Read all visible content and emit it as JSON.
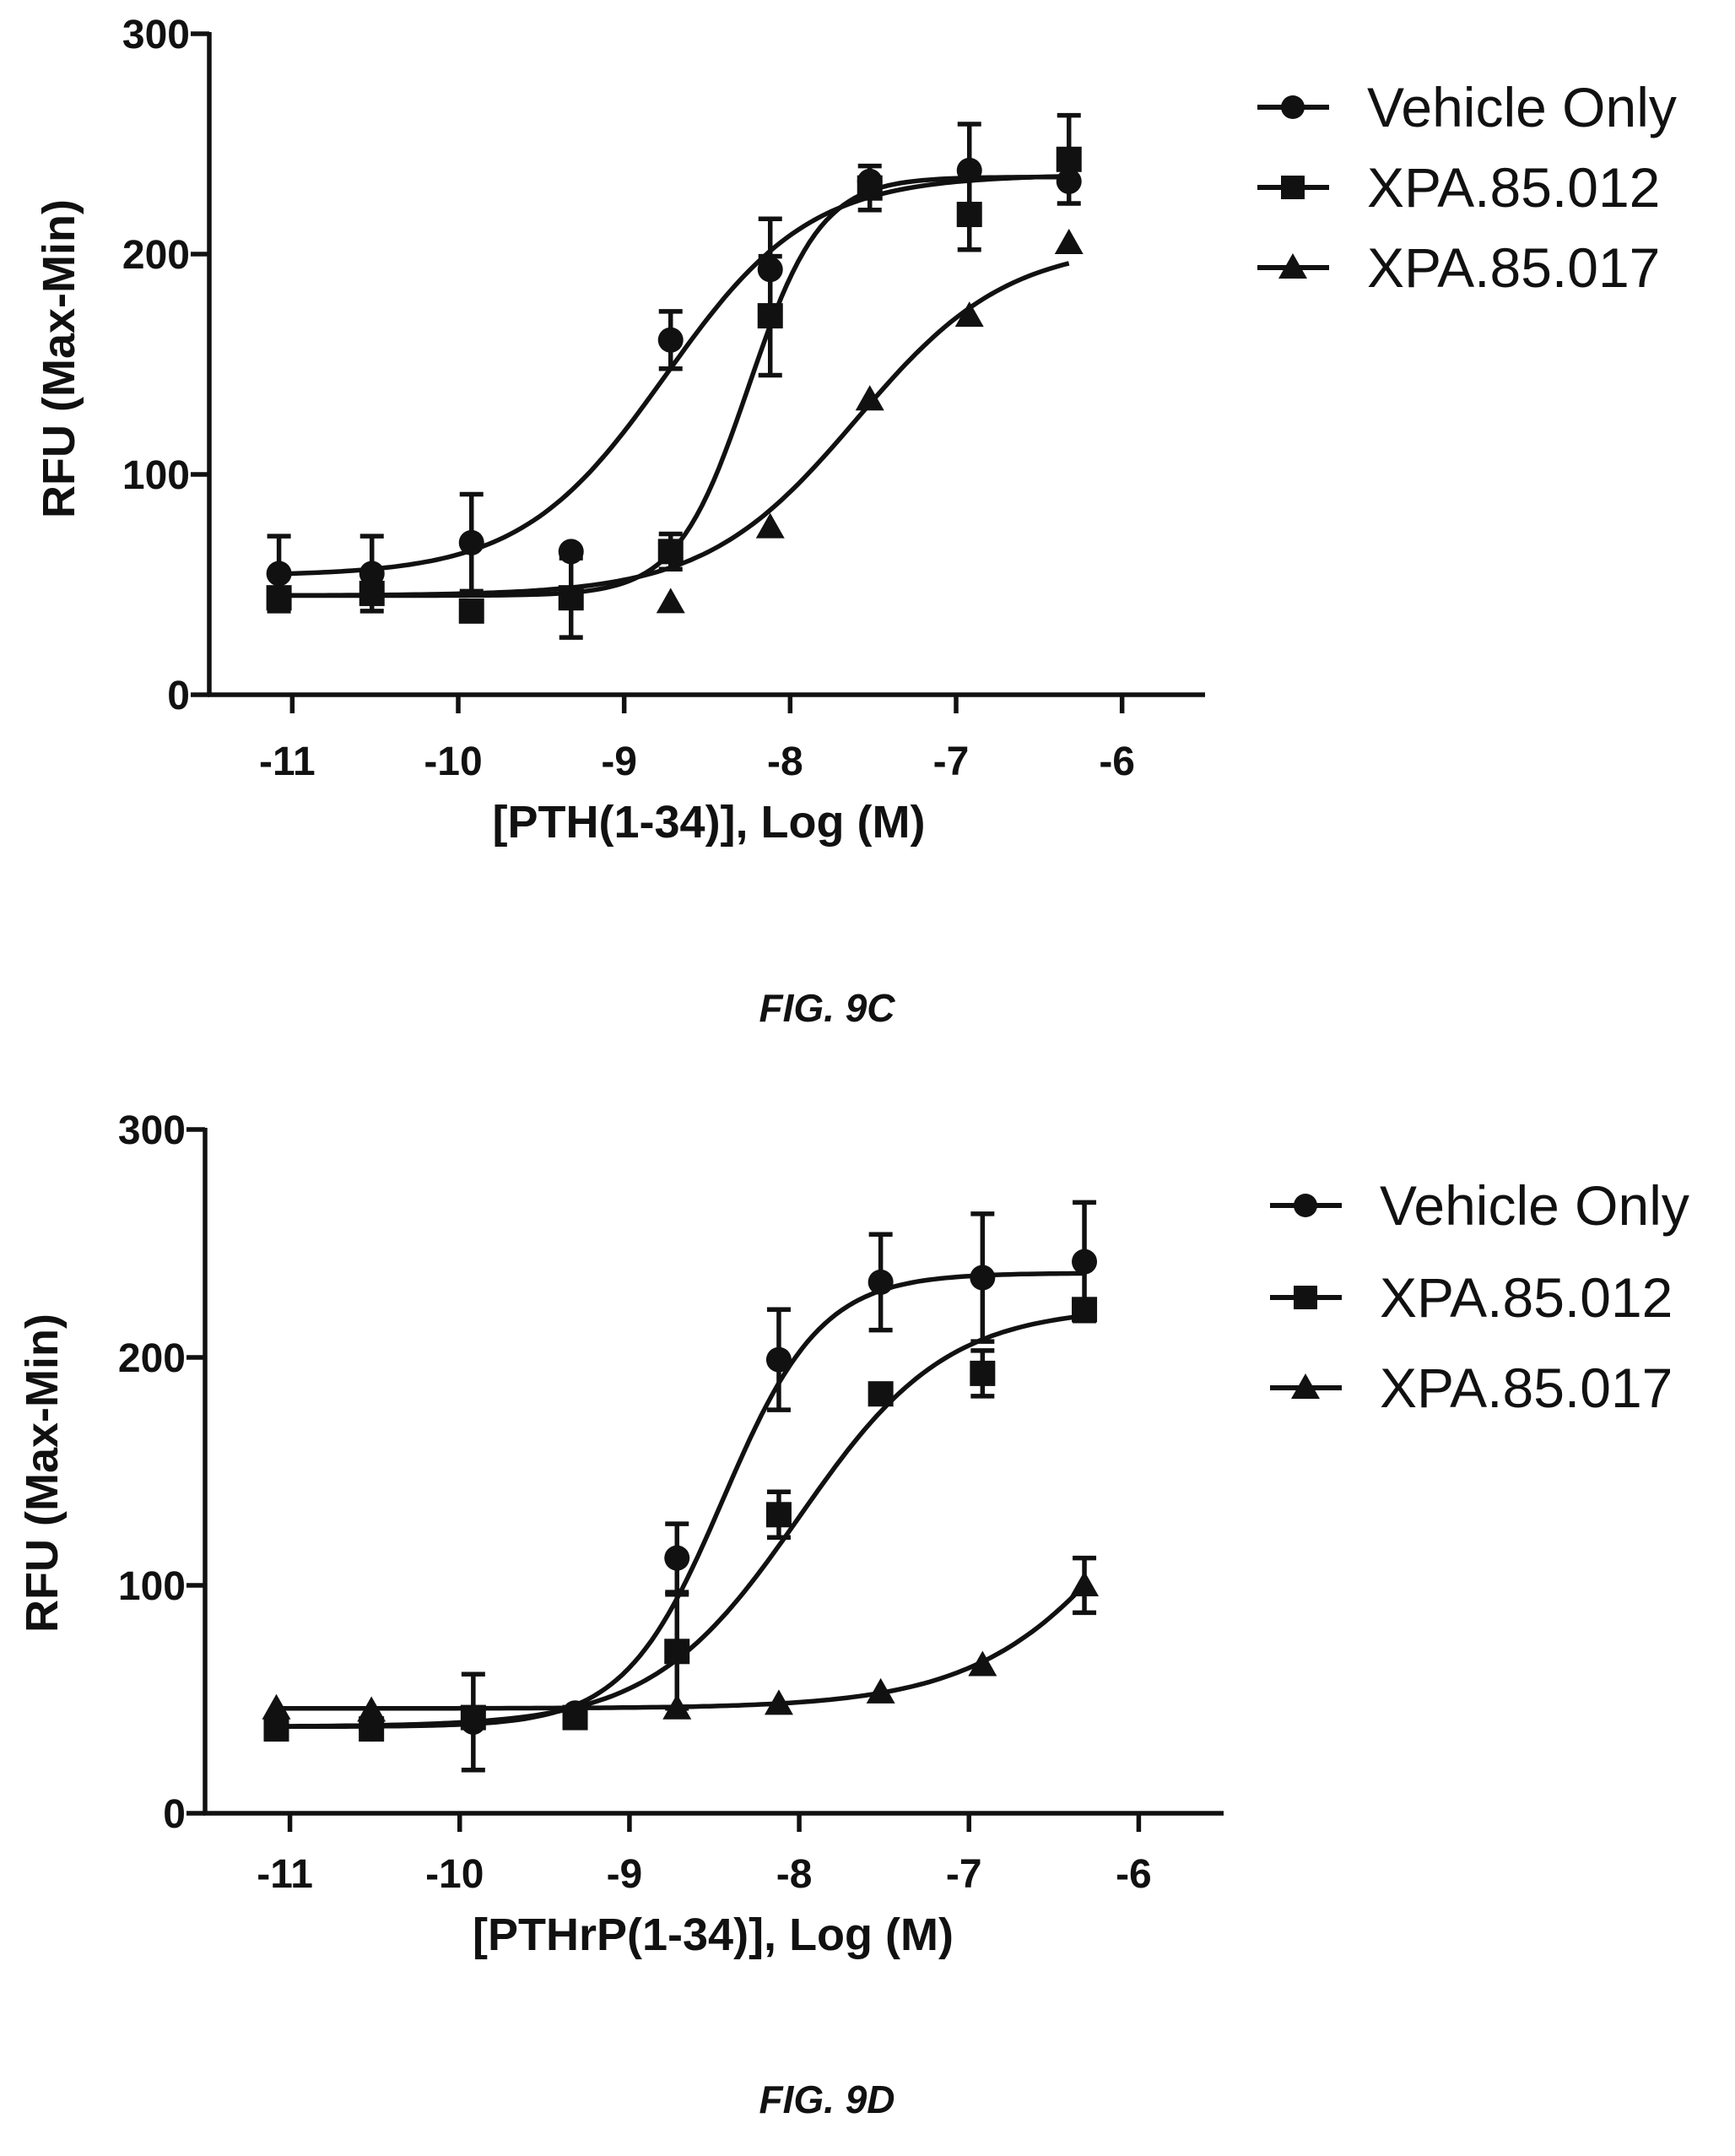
{
  "chart_data": [
    {
      "type": "scatter",
      "figure_label": "FIG. 9C",
      "title": "",
      "xlabel": "[PTH(1-34)], Log (M)",
      "ylabel": "RFU (Max-Min)",
      "xlim": [
        -11.5,
        -5.5
      ],
      "ylim": [
        0,
        300
      ],
      "x_ticks": [
        -11,
        -10,
        -9,
        -8,
        -7,
        -6
      ],
      "x_tick_labels": [
        "-11",
        "-10",
        "-9",
        "-8",
        "-7",
        "-6"
      ],
      "y_ticks": [
        0,
        100,
        200,
        300
      ],
      "y_tick_labels": [
        "0",
        "100",
        "200",
        "300"
      ],
      "x": [
        -11.08,
        -10.52,
        -9.92,
        -9.32,
        -8.72,
        -8.12,
        -7.52,
        -6.92,
        -6.32
      ],
      "legend_position": "right",
      "grid": false,
      "series": [
        {
          "name": "Vehicle Only",
          "marker": "circle",
          "values": [
            55,
            55,
            69,
            65,
            161,
            193,
            233,
            238,
            233
          ],
          "errors": [
            17,
            17,
            22,
            null,
            13,
            23,
            null,
            21,
            null
          ],
          "fit": {
            "bottom": 54,
            "top": 236,
            "logEC50": -8.75,
            "hill": 1.0
          }
        },
        {
          "name": "XPA.85.012",
          "marker": "square",
          "values": [
            44,
            46,
            38,
            44,
            65,
            172,
            230,
            218,
            243
          ],
          "errors": [
            null,
            null,
            null,
            18,
            8,
            27,
            10,
            16,
            20
          ],
          "fit": {
            "bottom": 45,
            "top": 235,
            "logEC50": -8.25,
            "hill": 2.0
          }
        },
        {
          "name": "XPA.85.017",
          "marker": "triangle",
          "values": [
            null,
            null,
            null,
            null,
            42,
            76,
            134,
            172,
            205
          ],
          "errors": [
            null,
            null,
            null,
            null,
            null,
            null,
            null,
            null,
            null
          ],
          "fit": {
            "bottom": 45,
            "top": 205,
            "logEC50": -7.6,
            "hill": 0.95
          }
        }
      ]
    },
    {
      "type": "scatter",
      "figure_label": "FIG. 9D",
      "title": "",
      "xlabel": "[PTHrP(1-34)], Log (M)",
      "ylabel": "RFU (Max-Min)",
      "xlim": [
        -11.5,
        -5.5
      ],
      "ylim": [
        0,
        300
      ],
      "x_ticks": [
        -11,
        -10,
        -9,
        -8,
        -7,
        -6
      ],
      "x_tick_labels": [
        "-11",
        "-10",
        "-9",
        "-8",
        "-7",
        "-6"
      ],
      "y_ticks": [
        0,
        100,
        200,
        300
      ],
      "y_tick_labels": [
        "0",
        "100",
        "200",
        "300"
      ],
      "x": [
        -11.08,
        -10.52,
        -9.92,
        -9.32,
        -8.72,
        -8.12,
        -7.52,
        -6.92,
        -6.32
      ],
      "legend_position": "right",
      "grid": false,
      "series": [
        {
          "name": "Vehicle Only",
          "marker": "circle",
          "values": [
            38,
            37,
            40,
            44,
            112,
            199,
            233,
            235,
            242
          ],
          "errors": [
            null,
            null,
            21,
            null,
            15,
            22,
            21,
            28,
            26
          ],
          "fit": {
            "bottom": 38,
            "top": 237,
            "logEC50": -8.45,
            "hill": 1.5
          }
        },
        {
          "name": "XPA.85.012",
          "marker": "square",
          "values": [
            37,
            37,
            42,
            42,
            71,
            131,
            184,
            193,
            221
          ],
          "errors": [
            null,
            null,
            null,
            null,
            25,
            10,
            null,
            10,
            null
          ],
          "fit": {
            "bottom": 38,
            "top": 222,
            "logEC50": -8.0,
            "hill": 1.0
          }
        },
        {
          "name": "XPA.85.017",
          "marker": "triangle",
          "values": [
            46,
            45,
            null,
            null,
            46,
            48,
            53,
            65,
            100
          ],
          "errors": [
            null,
            null,
            null,
            null,
            null,
            null,
            null,
            null,
            12
          ],
          "fit": {
            "bottom": 46,
            "top": 250,
            "logEC50": -5.8,
            "hill": 0.85
          }
        }
      ]
    }
  ]
}
